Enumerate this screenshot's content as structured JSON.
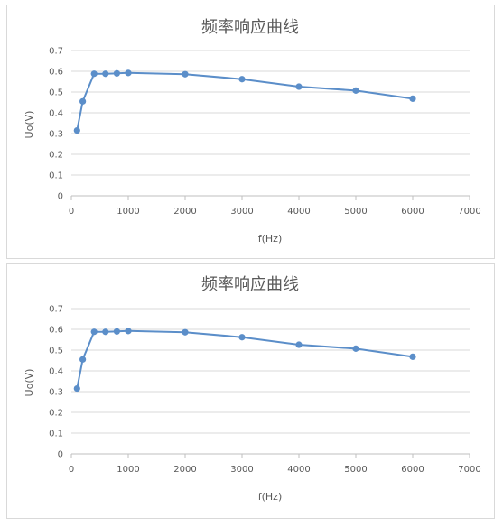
{
  "chart_data": [
    {
      "type": "line",
      "title": "频率响应曲线",
      "xlabel": "f(Hz)",
      "ylabel": "Uo(V)",
      "xlim": [
        0,
        7000
      ],
      "ylim": [
        0,
        0.7
      ],
      "x_ticks": [
        "0",
        "1000",
        "2000",
        "3000",
        "4000",
        "5000",
        "6000",
        "7000"
      ],
      "y_ticks": [
        "0",
        "0.1",
        "0.2",
        "0.3",
        "0.4",
        "0.5",
        "0.6",
        "0.7"
      ],
      "grid": true,
      "legend": "none",
      "series": [
        {
          "color": "#5b8ec9",
          "x": [
            100,
            200,
            400,
            600,
            800,
            1000,
            2000,
            3000,
            4000,
            5000,
            6000
          ],
          "y": [
            0.315,
            0.455,
            0.588,
            0.588,
            0.59,
            0.592,
            0.586,
            0.562,
            0.526,
            0.507,
            0.468
          ]
        }
      ]
    },
    {
      "type": "line",
      "title": "频率响应曲线",
      "xlabel": "f(Hz)",
      "ylabel": "Uo(V)",
      "xlim": [
        0,
        7000
      ],
      "ylim": [
        0,
        0.7
      ],
      "x_ticks": [
        "0",
        "1000",
        "2000",
        "3000",
        "4000",
        "5000",
        "6000",
        "7000"
      ],
      "y_ticks": [
        "0",
        "0.1",
        "0.2",
        "0.3",
        "0.4",
        "0.5",
        "0.6",
        "0.7"
      ],
      "grid": true,
      "legend": "none",
      "series": [
        {
          "color": "#5b8ec9",
          "x": [
            100,
            200,
            400,
            600,
            800,
            1000,
            2000,
            3000,
            4000,
            5000,
            6000
          ],
          "y": [
            0.315,
            0.455,
            0.588,
            0.588,
            0.59,
            0.592,
            0.586,
            0.562,
            0.526,
            0.507,
            0.468
          ]
        }
      ]
    }
  ]
}
